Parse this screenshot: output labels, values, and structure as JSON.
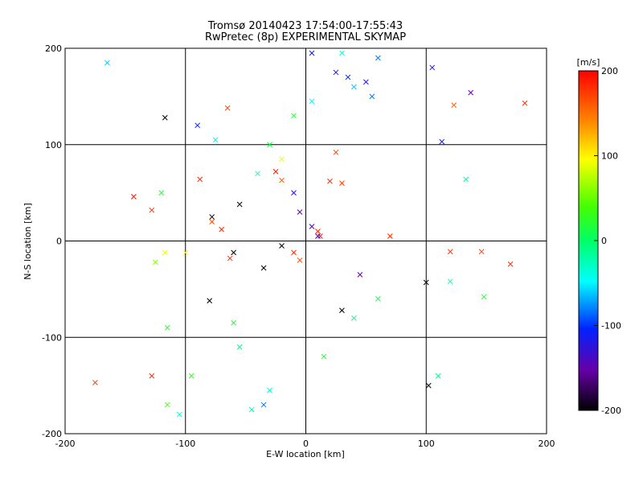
{
  "chart_data": {
    "type": "scatter",
    "title": "Tromsø 20140423 17:54:00-17:55:43",
    "subtitle": "RwPretec (8p) EXPERIMENTAL SKYMAP",
    "xlabel": "E-W location [km]",
    "ylabel": "N-S location [km]",
    "xlim": [
      -200,
      200
    ],
    "ylim": [
      -200,
      200
    ],
    "xticks": [
      "-200",
      "-100",
      "0",
      "100",
      "200"
    ],
    "yticks": [
      "-200",
      "-100",
      "0",
      "100",
      "200"
    ],
    "grid": true,
    "colorbar": {
      "label": "[m/s]",
      "range": [
        -200,
        200
      ],
      "ticks": [
        "200",
        "100",
        "0",
        "-100",
        "-200"
      ]
    },
    "points": [
      [
        -165,
        185,
        -60
      ],
      [
        30,
        195,
        -40
      ],
      [
        5,
        195,
        -110
      ],
      [
        60,
        190,
        -80
      ],
      [
        25,
        175,
        -110
      ],
      [
        35,
        170,
        -100
      ],
      [
        50,
        165,
        -120
      ],
      [
        55,
        150,
        -80
      ],
      [
        40,
        160,
        -60
      ],
      [
        -65,
        138,
        170
      ],
      [
        -90,
        120,
        -100
      ],
      [
        -75,
        105,
        -40
      ],
      [
        -117,
        128,
        -200
      ],
      [
        5,
        145,
        -50
      ],
      [
        123,
        141,
        160
      ],
      [
        182,
        143,
        180
      ],
      [
        113,
        103,
        -110
      ],
      [
        137,
        154,
        -150
      ],
      [
        105,
        180,
        -120
      ],
      [
        25,
        92,
        170
      ],
      [
        -20,
        85,
        90
      ],
      [
        -40,
        70,
        -30
      ],
      [
        -25,
        72,
        190
      ],
      [
        -20,
        63,
        160
      ],
      [
        -88,
        64,
        180
      ],
      [
        -78,
        25,
        -200
      ],
      [
        -78,
        20,
        170
      ],
      [
        -70,
        12,
        180
      ],
      [
        -55,
        38,
        -200
      ],
      [
        -10,
        50,
        -120
      ],
      [
        20,
        62,
        180
      ],
      [
        30,
        60,
        170
      ],
      [
        -5,
        30,
        -160
      ],
      [
        5,
        15,
        -140
      ],
      [
        10,
        10,
        180
      ],
      [
        12,
        5,
        190
      ],
      [
        -20,
        -5,
        -200
      ],
      [
        -10,
        -12,
        180
      ],
      [
        -5,
        -20,
        170
      ],
      [
        -63,
        -18,
        180
      ],
      [
        -60,
        -12,
        -200
      ],
      [
        -35,
        -28,
        -200
      ],
      [
        -143,
        46,
        190
      ],
      [
        -128,
        32,
        180
      ],
      [
        -117,
        -12,
        90
      ],
      [
        -100,
        -12,
        100
      ],
      [
        -125,
        -22,
        60
      ],
      [
        -115,
        -90,
        20
      ],
      [
        120,
        -11,
        180
      ],
      [
        146,
        -11,
        170
      ],
      [
        170,
        -24,
        180
      ],
      [
        133,
        64,
        -20
      ],
      [
        148,
        -58,
        20
      ],
      [
        45,
        -35,
        -150
      ],
      [
        30,
        -72,
        -200
      ],
      [
        120,
        -42,
        -30
      ],
      [
        100,
        -43,
        -200
      ],
      [
        -175,
        -147,
        170
      ],
      [
        -128,
        -140,
        180
      ],
      [
        -115,
        -170,
        40
      ],
      [
        -55,
        -110,
        -10
      ],
      [
        -30,
        -155,
        -40
      ],
      [
        -35,
        -170,
        -80
      ],
      [
        -45,
        -175,
        -20
      ],
      [
        110,
        -140,
        -10
      ],
      [
        102,
        -150,
        -200
      ],
      [
        -105,
        -180,
        -40
      ],
      [
        -80,
        -62,
        -200
      ],
      [
        70,
        5,
        180
      ],
      [
        10,
        5,
        -160
      ],
      [
        -120,
        50,
        20
      ],
      [
        -10,
        130,
        20
      ],
      [
        -30,
        100,
        10
      ],
      [
        15,
        -120,
        20
      ],
      [
        40,
        -80,
        -10
      ],
      [
        60,
        -60,
        10
      ],
      [
        -60,
        -85,
        20
      ],
      [
        -95,
        -140,
        30
      ]
    ]
  }
}
